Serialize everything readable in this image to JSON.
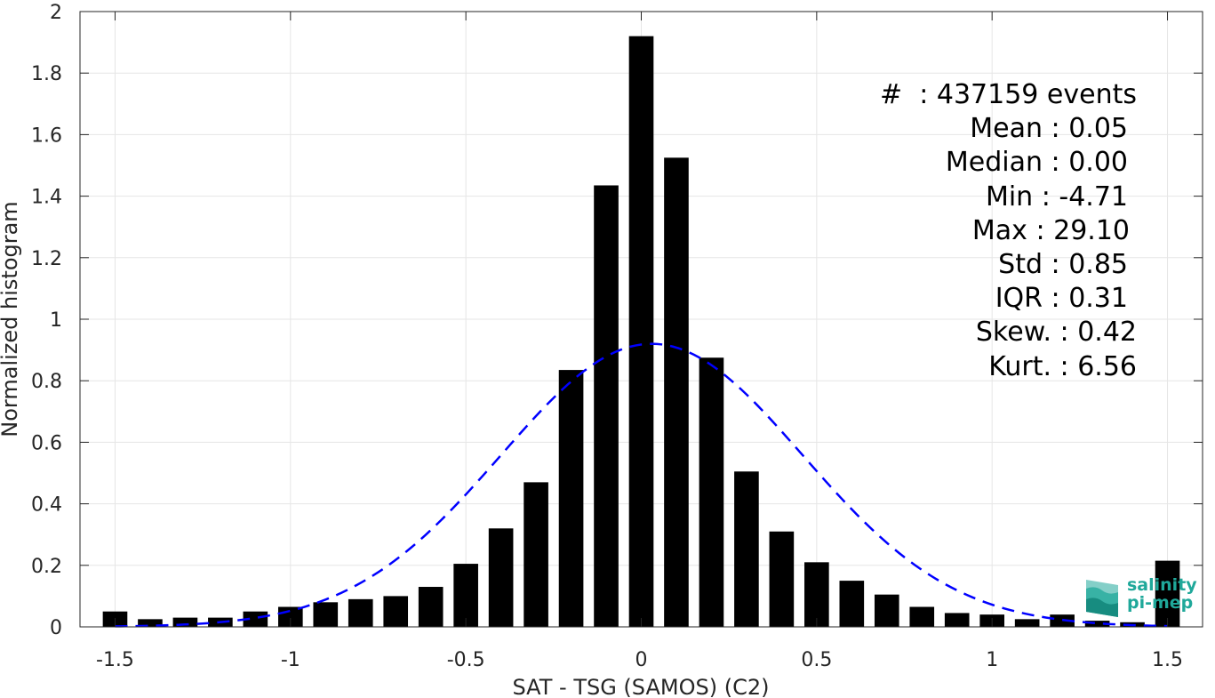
{
  "chart_data": {
    "type": "bar",
    "xlabel": "SAT - TSG (SAMOS) (C2)",
    "ylabel": "Normalized histogram",
    "xlim": [
      -1.6,
      1.6
    ],
    "ylim": [
      0,
      2
    ],
    "grid": true,
    "x_ticks": [
      -1.5,
      -1,
      -0.5,
      0,
      0.5,
      1,
      1.5
    ],
    "x_tick_labels": [
      "-1.5",
      "-1",
      "-0.5",
      "0",
      "0.5",
      "1",
      "1.5"
    ],
    "y_ticks": [
      0,
      0.2,
      0.4,
      0.6,
      0.8,
      1,
      1.2,
      1.4,
      1.6,
      1.8,
      2
    ],
    "y_tick_labels": [
      "0",
      "0.2",
      "0.4",
      "0.6",
      "0.8",
      "1",
      "1.2",
      "1.4",
      "1.6",
      "1.8",
      "2"
    ],
    "bar_width": 0.07,
    "bar_color": "#000000",
    "bins": [
      {
        "x": -1.5,
        "value": 0.05
      },
      {
        "x": -1.4,
        "value": 0.025
      },
      {
        "x": -1.3,
        "value": 0.03
      },
      {
        "x": -1.2,
        "value": 0.03
      },
      {
        "x": -1.1,
        "value": 0.05
      },
      {
        "x": -1.0,
        "value": 0.065
      },
      {
        "x": -0.9,
        "value": 0.08
      },
      {
        "x": -0.8,
        "value": 0.09
      },
      {
        "x": -0.7,
        "value": 0.1
      },
      {
        "x": -0.6,
        "value": 0.13
      },
      {
        "x": -0.5,
        "value": 0.205
      },
      {
        "x": -0.4,
        "value": 0.32
      },
      {
        "x": -0.3,
        "value": 0.47
      },
      {
        "x": -0.2,
        "value": 0.835
      },
      {
        "x": -0.1,
        "value": 1.435
      },
      {
        "x": 0.0,
        "value": 1.92
      },
      {
        "x": 0.1,
        "value": 1.525
      },
      {
        "x": 0.2,
        "value": 0.875
      },
      {
        "x": 0.3,
        "value": 0.505
      },
      {
        "x": 0.4,
        "value": 0.31
      },
      {
        "x": 0.5,
        "value": 0.21
      },
      {
        "x": 0.6,
        "value": 0.15
      },
      {
        "x": 0.7,
        "value": 0.105
      },
      {
        "x": 0.8,
        "value": 0.065
      },
      {
        "x": 0.9,
        "value": 0.045
      },
      {
        "x": 1.0,
        "value": 0.04
      },
      {
        "x": 1.1,
        "value": 0.025
      },
      {
        "x": 1.2,
        "value": 0.04
      },
      {
        "x": 1.3,
        "value": 0.02
      },
      {
        "x": 1.4,
        "value": 0.015
      },
      {
        "x": 1.5,
        "value": 0.215
      }
    ],
    "fit_curve": {
      "type": "gaussian",
      "mean": 0.03,
      "peak": 0.92,
      "sigma": 0.43,
      "x_range": [
        -1.5,
        1.5
      ],
      "color": "#0000ff",
      "style": "dashed"
    },
    "stats_lines": [
      "#  : 437159 events",
      "Mean : 0.05",
      "Median : 0.00",
      "Min : -4.71",
      "Max : 29.10",
      "Std : 0.85",
      "IQR : 0.31",
      "Skew. : 0.42",
      "Kurt. : 6.56"
    ]
  },
  "logo": {
    "line1": "salinity",
    "line2": "pi-mep",
    "color": "#1fa89a"
  }
}
